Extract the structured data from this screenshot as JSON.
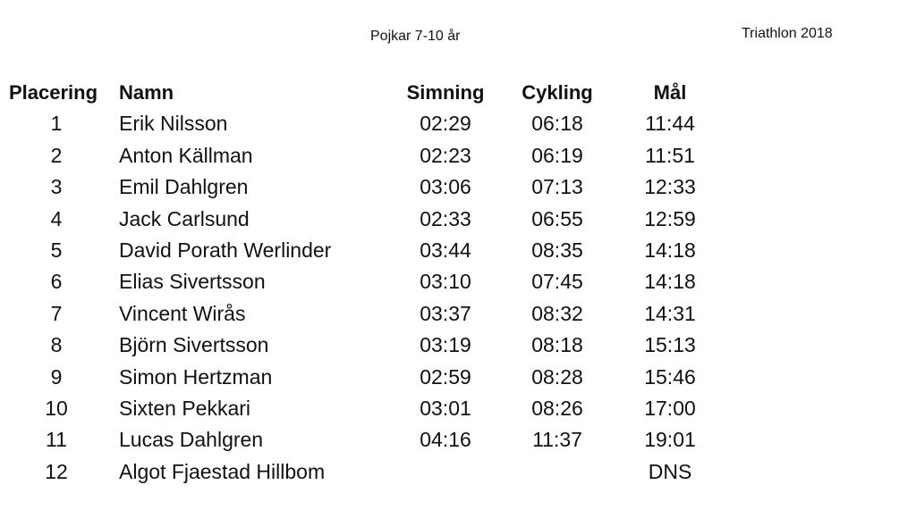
{
  "document": {
    "title": "Pojkar 7-10 år",
    "event": "Triathlon 2018"
  },
  "table": {
    "headers": {
      "place": "Placering",
      "name": "Namn",
      "swim": "Simning",
      "cycle": "Cykling",
      "goal": "Mål"
    },
    "rows": [
      {
        "place": "1",
        "name": "Erik Nilsson",
        "swim": "02:29",
        "cycle": "06:18",
        "goal": "11:44"
      },
      {
        "place": "2",
        "name": "Anton Källman",
        "swim": "02:23",
        "cycle": "06:19",
        "goal": "11:51"
      },
      {
        "place": "3",
        "name": "Emil Dahlgren",
        "swim": "03:06",
        "cycle": "07:13",
        "goal": "12:33"
      },
      {
        "place": "4",
        "name": "Jack Carlsund",
        "swim": "02:33",
        "cycle": "06:55",
        "goal": "12:59"
      },
      {
        "place": "5",
        "name": "David Porath Werlinder",
        "swim": "03:44",
        "cycle": "08:35",
        "goal": "14:18"
      },
      {
        "place": "6",
        "name": "Elias Sivertsson",
        "swim": "03:10",
        "cycle": "07:45",
        "goal": "14:18"
      },
      {
        "place": "7",
        "name": "Vincent Wirås",
        "swim": "03:37",
        "cycle": "08:32",
        "goal": "14:31"
      },
      {
        "place": "8",
        "name": "Björn Sivertsson",
        "swim": "03:19",
        "cycle": "08:18",
        "goal": "15:13"
      },
      {
        "place": "9",
        "name": "Simon Hertzman",
        "swim": "02:59",
        "cycle": "08:28",
        "goal": "15:46"
      },
      {
        "place": "10",
        "name": "Sixten Pekkari",
        "swim": "03:01",
        "cycle": "08:26",
        "goal": "17:00"
      },
      {
        "place": "11",
        "name": "Lucas Dahlgren",
        "swim": "04:16",
        "cycle": "11:37",
        "goal": "19:01"
      },
      {
        "place": "12",
        "name": "Algot Fjaestad Hillbom",
        "swim": "",
        "cycle": "",
        "goal": "DNS"
      }
    ]
  }
}
